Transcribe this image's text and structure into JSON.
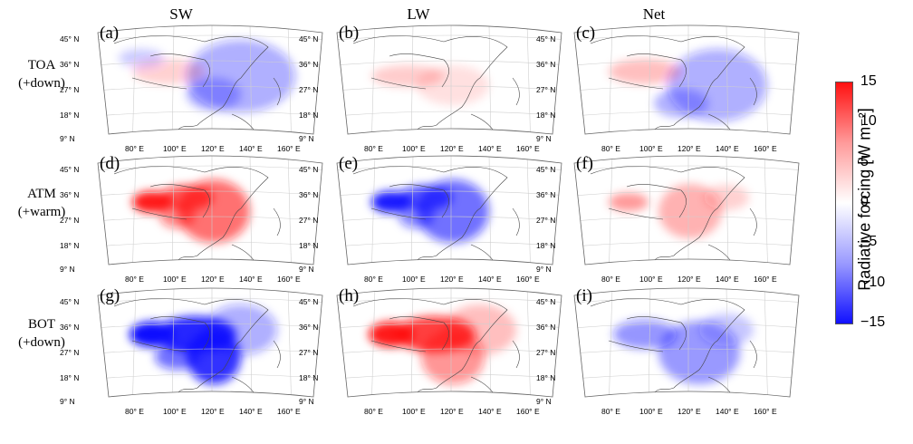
{
  "columns": [
    "SW",
    "LW",
    "Net"
  ],
  "rows": [
    {
      "label": "TOA",
      "sub": "(+down)"
    },
    {
      "label": "ATM",
      "sub": "(+warm)"
    },
    {
      "label": "BOT",
      "sub": "(+down)"
    }
  ],
  "panels": [
    {
      "id": "(a)",
      "row": 0,
      "col": 0,
      "pattern": "toa_sw"
    },
    {
      "id": "(b)",
      "row": 0,
      "col": 1,
      "pattern": "toa_lw"
    },
    {
      "id": "(c)",
      "row": 0,
      "col": 2,
      "pattern": "toa_net"
    },
    {
      "id": "(d)",
      "row": 1,
      "col": 0,
      "pattern": "atm_sw"
    },
    {
      "id": "(e)",
      "row": 1,
      "col": 1,
      "pattern": "atm_lw"
    },
    {
      "id": "(f)",
      "row": 1,
      "col": 2,
      "pattern": "atm_net"
    },
    {
      "id": "(g)",
      "row": 2,
      "col": 0,
      "pattern": "bot_sw"
    },
    {
      "id": "(h)",
      "row": 2,
      "col": 1,
      "pattern": "bot_lw"
    },
    {
      "id": "(i)",
      "row": 2,
      "col": 2,
      "pattern": "bot_net"
    }
  ],
  "lat_labels": [
    "45° N",
    "36° N",
    "27° N",
    "18° N",
    "9° N"
  ],
  "lon_labels": [
    "80° E",
    "100° E",
    "120° E",
    "140° E",
    "160° E"
  ],
  "colorbar": {
    "title": "Radiative forcing [W m⁻²]",
    "ticks": [
      "15",
      "10",
      "5",
      "0",
      "−5",
      "−10",
      "−15"
    ],
    "min": -15,
    "max": 15,
    "colors": {
      "high": "#ff1010",
      "mid": "#ffffff",
      "low": "#1010ff"
    }
  }
}
